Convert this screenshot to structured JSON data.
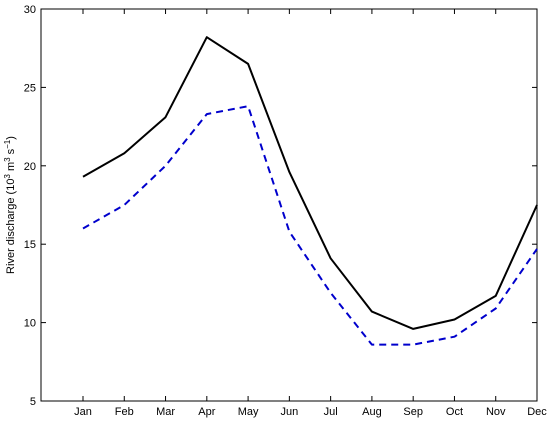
{
  "chart_data": {
    "type": "line",
    "title": "",
    "xlabel": "",
    "ylabel": "River discharge (10³ m³ s⁻¹)",
    "ylabel_parts": {
      "prefix": "River discharge (10",
      "exp1": "3",
      "mid1": " m",
      "exp2": "3",
      "mid2": " s",
      "exp3": "−1",
      "suffix": ")"
    },
    "categories": [
      "Jan",
      "Feb",
      "Mar",
      "Apr",
      "May",
      "Jun",
      "Jul",
      "Aug",
      "Sep",
      "Oct",
      "Nov",
      "Dec"
    ],
    "ylim": [
      5,
      30
    ],
    "yticks": [
      5,
      10,
      15,
      20,
      25,
      30
    ],
    "grid": false,
    "legend": "none",
    "series": [
      {
        "style": "solid",
        "color": "#000000",
        "values": [
          19.3,
          20.8,
          23.1,
          28.2,
          26.5,
          19.6,
          14.1,
          10.7,
          9.6,
          10.2,
          11.7,
          17.5
        ]
      },
      {
        "style": "dashed",
        "color": "#0000cc",
        "values": [
          16.0,
          17.5,
          20.0,
          23.3,
          23.8,
          15.8,
          11.9,
          8.6,
          8.6,
          9.1,
          10.9,
          14.7
        ]
      }
    ]
  }
}
